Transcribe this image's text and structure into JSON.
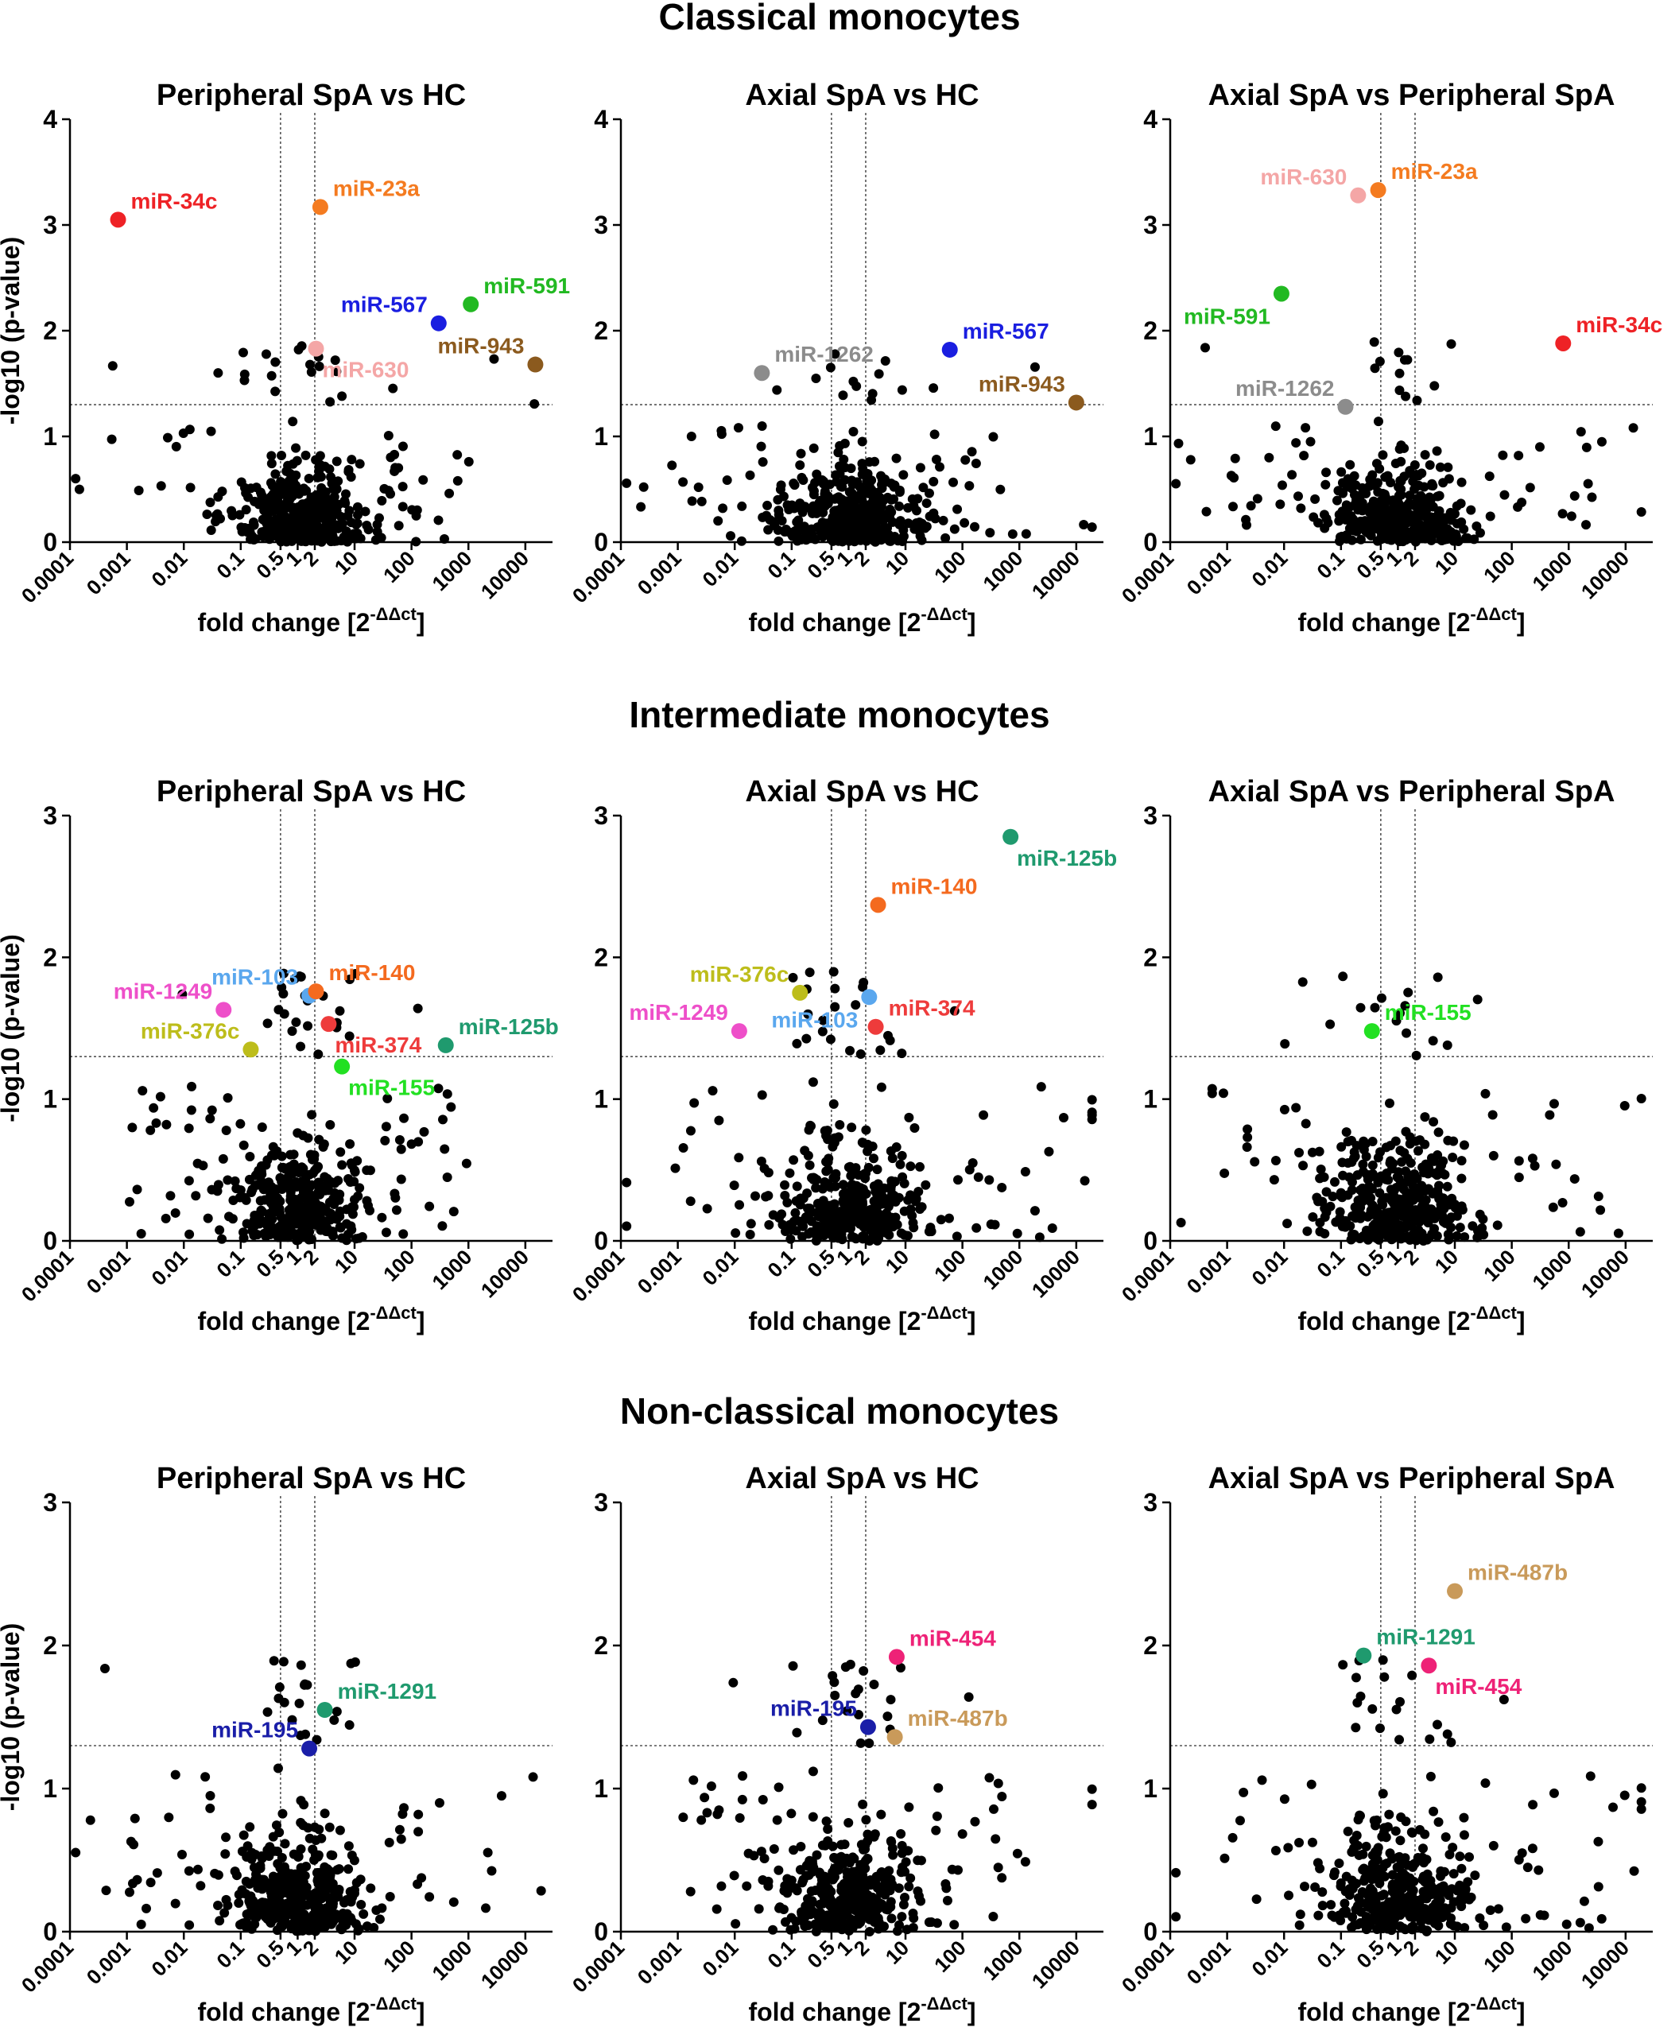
{
  "section_titles": [
    "Classical monocytes",
    "Intermediate monocytes",
    "Non-classical monocytes"
  ],
  "axis_labels": {
    "ylabel": "-log10 (p-value)",
    "xlabel_prefix": "fold change [2",
    "xlabel_sup": "-ΔΔct",
    "xlabel_suffix": "]"
  },
  "x_ticks": [
    "0.0001",
    "0.001",
    "0.01",
    "0.1",
    "0.5",
    "1",
    "2",
    "10",
    "100",
    "1000",
    "10000"
  ],
  "thresholds": {
    "fold_low": 0.5,
    "fold_high": 2,
    "p_value_log": 1.3
  },
  "chart_data": [
    {
      "type": "scatter",
      "section": "Classical monocytes",
      "title": "Peripheral SpA vs HC",
      "xlabel": "fold change [2^-ΔΔct]",
      "ylabel": "-log10 (p-value)",
      "xscale": "log",
      "xlim": [
        0.0001,
        30000
      ],
      "ylim": [
        0,
        4
      ],
      "yticks": [
        0,
        1,
        2,
        3,
        4
      ],
      "highlights": [
        {
          "label": "miR-34c",
          "x": 0.0007,
          "y": 3.05,
          "color": "#ee2226",
          "label_pos": "right-up"
        },
        {
          "label": "miR-23a",
          "x": 2.5,
          "y": 3.17,
          "color": "#f47b20",
          "label_pos": "right-up"
        },
        {
          "label": "miR-567",
          "x": 300,
          "y": 2.07,
          "color": "#1a1ee0",
          "label_pos": "left-up"
        },
        {
          "label": "miR-591",
          "x": 1100,
          "y": 2.25,
          "color": "#22b922",
          "label_pos": "right-up"
        },
        {
          "label": "miR-943",
          "x": 15000,
          "y": 1.68,
          "color": "#8b5a1e",
          "label_pos": "left-up"
        },
        {
          "label": "miR-630",
          "x": 2.1,
          "y": 1.83,
          "color": "#f4a6a6",
          "label_pos": "right-down"
        }
      ]
    },
    {
      "type": "scatter",
      "section": "Classical monocytes",
      "title": "Axial SpA vs HC",
      "xlabel": "fold change [2^-ΔΔct]",
      "ylabel": "",
      "xscale": "log",
      "xlim": [
        0.0001,
        30000
      ],
      "ylim": [
        0,
        4
      ],
      "yticks": [
        0,
        1,
        2,
        3,
        4
      ],
      "highlights": [
        {
          "label": "miR-1262",
          "x": 0.03,
          "y": 1.6,
          "color": "#8c8c8c",
          "label_pos": "right-up"
        },
        {
          "label": "miR-567",
          "x": 60,
          "y": 1.82,
          "color": "#1a1ee0",
          "label_pos": "right-up"
        },
        {
          "label": "miR-943",
          "x": 10000,
          "y": 1.32,
          "color": "#8b5a1e",
          "label_pos": "left-up"
        }
      ]
    },
    {
      "type": "scatter",
      "section": "Classical monocytes",
      "title": "Axial SpA vs Peripheral SpA",
      "xlabel": "fold change [2^-ΔΔct]",
      "ylabel": "",
      "xscale": "log",
      "xlim": [
        0.0001,
        30000
      ],
      "ylim": [
        0,
        4
      ],
      "yticks": [
        0,
        1,
        2,
        3,
        4
      ],
      "highlights": [
        {
          "label": "miR-630",
          "x": 0.2,
          "y": 3.28,
          "color": "#f4a6a6",
          "label_pos": "left-up"
        },
        {
          "label": "miR-23a",
          "x": 0.45,
          "y": 3.33,
          "color": "#f47b20",
          "label_pos": "right-up"
        },
        {
          "label": "miR-591",
          "x": 0.009,
          "y": 2.35,
          "color": "#22b922",
          "label_pos": "left-down"
        },
        {
          "label": "miR-1262",
          "x": 0.12,
          "y": 1.28,
          "color": "#8c8c8c",
          "label_pos": "left-up"
        },
        {
          "label": "miR-34c",
          "x": 800,
          "y": 1.88,
          "color": "#ee2226",
          "label_pos": "right-up"
        }
      ]
    },
    {
      "type": "scatter",
      "section": "Intermediate monocytes",
      "title": "Peripheral SpA vs HC",
      "xlabel": "fold change [2^-ΔΔct]",
      "ylabel": "-log10 (p-value)",
      "xscale": "log",
      "xlim": [
        0.0001,
        30000
      ],
      "ylim": [
        0,
        3
      ],
      "yticks": [
        0,
        1,
        2,
        3
      ],
      "highlights": [
        {
          "label": "miR-1249",
          "x": 0.05,
          "y": 1.63,
          "color": "#ee4fc9",
          "label_pos": "left-up"
        },
        {
          "label": "miR-103",
          "x": 1.6,
          "y": 1.73,
          "color": "#5aa7ee",
          "label_pos": "left-up"
        },
        {
          "label": "miR-140",
          "x": 2.1,
          "y": 1.76,
          "color": "#f46a1f",
          "label_pos": "right-up"
        },
        {
          "label": "miR-376c",
          "x": 0.15,
          "y": 1.35,
          "color": "#bdbd1b",
          "label_pos": "left-up"
        },
        {
          "label": "miR-374",
          "x": 3.5,
          "y": 1.53,
          "color": "#ee3b3b",
          "label_pos": "right-down"
        },
        {
          "label": "miR-125b",
          "x": 400,
          "y": 1.38,
          "color": "#1f9a6e",
          "label_pos": "right-up"
        },
        {
          "label": "miR-155",
          "x": 6,
          "y": 1.23,
          "color": "#22e022",
          "label_pos": "right-down"
        }
      ]
    },
    {
      "type": "scatter",
      "section": "Intermediate monocytes",
      "title": "Axial SpA vs HC",
      "xlabel": "fold change [2^-ΔΔct]",
      "ylabel": "",
      "xscale": "log",
      "xlim": [
        0.0001,
        30000
      ],
      "ylim": [
        0,
        3
      ],
      "yticks": [
        0,
        1,
        2,
        3
      ],
      "highlights": [
        {
          "label": "miR-125b",
          "x": 700,
          "y": 2.85,
          "color": "#1f9a6e",
          "label_pos": "right-down"
        },
        {
          "label": "miR-140",
          "x": 3.3,
          "y": 2.37,
          "color": "#f46a1f",
          "label_pos": "right-up"
        },
        {
          "label": "miR-376c",
          "x": 0.14,
          "y": 1.75,
          "color": "#bdbd1b",
          "label_pos": "left-up"
        },
        {
          "label": "miR-103",
          "x": 2.3,
          "y": 1.72,
          "color": "#5aa7ee",
          "label_pos": "left-down"
        },
        {
          "label": "miR-1249",
          "x": 0.012,
          "y": 1.48,
          "color": "#ee4fc9",
          "label_pos": "left-up"
        },
        {
          "label": "miR-374",
          "x": 3,
          "y": 1.51,
          "color": "#ee3b3b",
          "label_pos": "right-up"
        }
      ]
    },
    {
      "type": "scatter",
      "section": "Intermediate monocytes",
      "title": "Axial SpA vs Peripheral SpA",
      "xlabel": "fold change [2^-ΔΔct]",
      "ylabel": "",
      "xscale": "log",
      "xlim": [
        0.0001,
        30000
      ],
      "ylim": [
        0,
        3
      ],
      "yticks": [
        0,
        1,
        2,
        3
      ],
      "highlights": [
        {
          "label": "miR-155",
          "x": 0.35,
          "y": 1.48,
          "color": "#22e022",
          "label_pos": "right-up"
        }
      ]
    },
    {
      "type": "scatter",
      "section": "Non-classical monocytes",
      "title": "Peripheral SpA vs HC",
      "xlabel": "fold change [2^-ΔΔct]",
      "ylabel": "-log10 (p-value)",
      "xscale": "log",
      "xlim": [
        0.0001,
        30000
      ],
      "ylim": [
        0,
        3
      ],
      "yticks": [
        0,
        1,
        2,
        3
      ],
      "highlights": [
        {
          "label": "miR-1291",
          "x": 3,
          "y": 1.55,
          "color": "#1f9a6e",
          "label_pos": "right-up"
        },
        {
          "label": "miR-195",
          "x": 1.6,
          "y": 1.28,
          "color": "#1a1ea8",
          "label_pos": "left-up"
        }
      ]
    },
    {
      "type": "scatter",
      "section": "Non-classical monocytes",
      "title": "Axial SpA vs HC",
      "xlabel": "fold change [2^-ΔΔct]",
      "ylabel": "",
      "xscale": "log",
      "xlim": [
        0.0001,
        30000
      ],
      "ylim": [
        0,
        3
      ],
      "yticks": [
        0,
        1,
        2,
        3
      ],
      "highlights": [
        {
          "label": "miR-454",
          "x": 7,
          "y": 1.92,
          "color": "#ee2277",
          "label_pos": "right-up"
        },
        {
          "label": "miR-195",
          "x": 2.2,
          "y": 1.43,
          "color": "#1a1ea8",
          "label_pos": "left-up"
        },
        {
          "label": "miR-487b",
          "x": 6.5,
          "y": 1.36,
          "color": "#c99a5a",
          "label_pos": "right-up"
        }
      ]
    },
    {
      "type": "scatter",
      "section": "Non-classical monocytes",
      "title": "Axial SpA vs Peripheral SpA",
      "xlabel": "fold change [2^-ΔΔct]",
      "ylabel": "",
      "xscale": "log",
      "xlim": [
        0.0001,
        30000
      ],
      "ylim": [
        0,
        3
      ],
      "yticks": [
        0,
        1,
        2,
        3
      ],
      "highlights": [
        {
          "label": "miR-487b",
          "x": 10,
          "y": 2.38,
          "color": "#c99a5a",
          "label_pos": "right-up"
        },
        {
          "label": "miR-1291",
          "x": 0.25,
          "y": 1.93,
          "color": "#1f9a6e",
          "label_pos": "right-up"
        },
        {
          "label": "miR-454",
          "x": 3.5,
          "y": 1.86,
          "color": "#ee2277",
          "label_pos": "right-down"
        }
      ]
    }
  ]
}
